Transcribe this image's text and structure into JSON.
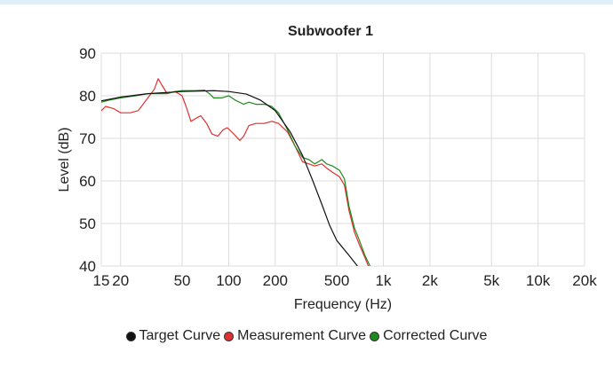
{
  "chart_data": {
    "type": "line",
    "title": "Subwoofer 1",
    "xlabel": "Frequency (Hz)",
    "ylabel": "Level (dB)",
    "x_scale": "log",
    "xlim": [
      15,
      20000
    ],
    "ylim": [
      40,
      90
    ],
    "x_ticks": [
      {
        "value": 15,
        "label": "15"
      },
      {
        "value": 20,
        "label": "20"
      },
      {
        "value": 50,
        "label": "50"
      },
      {
        "value": 100,
        "label": "100"
      },
      {
        "value": 200,
        "label": "200"
      },
      {
        "value": 500,
        "label": "500"
      },
      {
        "value": 1000,
        "label": "1k"
      },
      {
        "value": 2000,
        "label": "2k"
      },
      {
        "value": 5000,
        "label": "5k"
      },
      {
        "value": 10000,
        "label": "10k"
      },
      {
        "value": 20000,
        "label": "20k"
      }
    ],
    "y_ticks": [
      40,
      50,
      60,
      70,
      80,
      90
    ],
    "grid": true,
    "legend_position": "bottom",
    "series": [
      {
        "name": "Target Curve",
        "color": "#111111",
        "points": [
          [
            15,
            78.8
          ],
          [
            20,
            79.7
          ],
          [
            30,
            80.5
          ],
          [
            50,
            81.0
          ],
          [
            80,
            81.2
          ],
          [
            100,
            81.0
          ],
          [
            130,
            80.4
          ],
          [
            160,
            79.0
          ],
          [
            200,
            76.5
          ],
          [
            250,
            71.5
          ],
          [
            300,
            66.0
          ],
          [
            350,
            60.0
          ],
          [
            400,
            54.5
          ],
          [
            450,
            49.5
          ],
          [
            500,
            46.0
          ],
          [
            600,
            42.5
          ],
          [
            680,
            40.0
          ]
        ]
      },
      {
        "name": "Measurement Curve",
        "color": "#e03030",
        "points": [
          [
            15,
            76.5
          ],
          [
            16,
            77.5
          ],
          [
            18,
            77.0
          ],
          [
            20,
            76.0
          ],
          [
            23,
            76.0
          ],
          [
            26,
            76.5
          ],
          [
            30,
            79.5
          ],
          [
            33,
            81.5
          ],
          [
            35,
            84.0
          ],
          [
            37,
            82.5
          ],
          [
            40,
            80.5
          ],
          [
            45,
            81.0
          ],
          [
            50,
            80.0
          ],
          [
            53,
            77.5
          ],
          [
            57,
            74.0
          ],
          [
            62,
            74.8
          ],
          [
            66,
            75.3
          ],
          [
            72,
            73.5
          ],
          [
            78,
            71.0
          ],
          [
            85,
            70.5
          ],
          [
            92,
            72.0
          ],
          [
            98,
            72.5
          ],
          [
            108,
            71.0
          ],
          [
            118,
            69.5
          ],
          [
            125,
            70.5
          ],
          [
            135,
            73.0
          ],
          [
            150,
            73.5
          ],
          [
            170,
            73.5
          ],
          [
            190,
            74.0
          ],
          [
            210,
            73.5
          ],
          [
            240,
            71.5
          ],
          [
            270,
            68.0
          ],
          [
            300,
            64.5
          ],
          [
            330,
            64.0
          ],
          [
            360,
            63.5
          ],
          [
            400,
            64.0
          ],
          [
            430,
            63.0
          ],
          [
            470,
            62.0
          ],
          [
            520,
            61.0
          ],
          [
            560,
            59.0
          ],
          [
            600,
            53.0
          ],
          [
            650,
            48.0
          ],
          [
            700,
            45.0
          ],
          [
            750,
            42.5
          ],
          [
            800,
            40.0
          ]
        ]
      },
      {
        "name": "Corrected Curve",
        "color": "#1e8a1e",
        "points": [
          [
            15,
            78.5
          ],
          [
            17,
            79.0
          ],
          [
            20,
            79.5
          ],
          [
            25,
            80.0
          ],
          [
            30,
            80.5
          ],
          [
            35,
            80.5
          ],
          [
            40,
            80.5
          ],
          [
            45,
            81.0
          ],
          [
            50,
            81.2
          ],
          [
            60,
            81.2
          ],
          [
            70,
            81.3
          ],
          [
            75,
            80.5
          ],
          [
            80,
            79.5
          ],
          [
            90,
            79.5
          ],
          [
            100,
            80.0
          ],
          [
            110,
            79.0
          ],
          [
            125,
            78.0
          ],
          [
            135,
            78.5
          ],
          [
            150,
            78.0
          ],
          [
            170,
            78.0
          ],
          [
            190,
            77.5
          ],
          [
            210,
            76.0
          ],
          [
            240,
            72.0
          ],
          [
            270,
            68.0
          ],
          [
            300,
            65.5
          ],
          [
            330,
            65.0
          ],
          [
            360,
            64.0
          ],
          [
            400,
            65.0
          ],
          [
            430,
            64.0
          ],
          [
            470,
            63.5
          ],
          [
            520,
            62.5
          ],
          [
            560,
            60.5
          ],
          [
            600,
            54.0
          ],
          [
            650,
            49.0
          ],
          [
            700,
            46.0
          ],
          [
            760,
            42.5
          ],
          [
            820,
            40.0
          ]
        ]
      }
    ]
  }
}
